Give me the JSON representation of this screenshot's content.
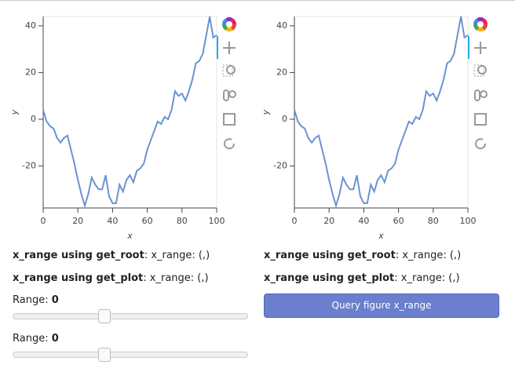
{
  "chart_data": [
    {
      "type": "line",
      "xlabel": "x",
      "ylabel": "y",
      "color": "#6a93d4",
      "x": [
        0,
        2,
        4,
        6,
        8,
        10,
        12,
        14,
        16,
        18,
        20,
        22,
        24,
        26,
        28,
        30,
        32,
        34,
        36,
        38,
        40,
        42,
        44,
        46,
        48,
        50,
        52,
        54,
        56,
        58,
        60,
        62,
        64,
        66,
        68,
        70,
        72,
        74,
        76,
        78,
        80,
        82,
        84,
        86,
        88,
        90,
        92,
        94,
        96,
        98,
        100
      ],
      "values": [
        4,
        -1,
        -3,
        -4,
        -8,
        -10,
        -8,
        -7,
        -13,
        -19,
        -26,
        -32,
        -37,
        -32,
        -25,
        -28,
        -30,
        -30,
        -24,
        -33,
        -36,
        -36,
        -28,
        -31,
        -26,
        -24,
        -27,
        -22,
        -21,
        -19,
        -13,
        -9,
        -5,
        -1,
        -2,
        1,
        0,
        4,
        12,
        10,
        11,
        8,
        12,
        17,
        24,
        25,
        28,
        36,
        44,
        35,
        36
      ],
      "xlim": [
        0,
        100
      ],
      "ylim": [
        -38,
        44
      ],
      "xticks": [
        0,
        20,
        40,
        60,
        80,
        100
      ],
      "yticks": [
        -20,
        0,
        20,
        40
      ]
    },
    {
      "type": "line",
      "xlabel": "x",
      "ylabel": "y",
      "color": "#6a93d4",
      "x": [
        0,
        2,
        4,
        6,
        8,
        10,
        12,
        14,
        16,
        18,
        20,
        22,
        24,
        26,
        28,
        30,
        32,
        34,
        36,
        38,
        40,
        42,
        44,
        46,
        48,
        50,
        52,
        54,
        56,
        58,
        60,
        62,
        64,
        66,
        68,
        70,
        72,
        74,
        76,
        78,
        80,
        82,
        84,
        86,
        88,
        90,
        92,
        94,
        96,
        98,
        100
      ],
      "values": [
        4,
        -1,
        -3,
        -4,
        -8,
        -10,
        -8,
        -7,
        -13,
        -19,
        -26,
        -32,
        -37,
        -32,
        -25,
        -28,
        -30,
        -30,
        -24,
        -33,
        -36,
        -36,
        -28,
        -31,
        -26,
        -24,
        -27,
        -22,
        -21,
        -19,
        -13,
        -9,
        -5,
        -1,
        -2,
        1,
        0,
        4,
        12,
        10,
        11,
        8,
        12,
        17,
        24,
        25,
        28,
        36,
        44,
        35,
        36
      ],
      "xlim": [
        0,
        100
      ],
      "ylim": [
        -38,
        44
      ],
      "xticks": [
        0,
        20,
        40,
        60,
        80,
        100
      ],
      "yticks": [
        -20,
        0,
        20,
        40
      ]
    }
  ],
  "left_panel": {
    "get_root": {
      "label": "x_range using get_root",
      "text": ": x_range: (,)"
    },
    "get_plot": {
      "label": "x_range using get_plot",
      "text": ": x_range: (,)"
    },
    "sliders": [
      {
        "label": "Range:",
        "value": 0
      },
      {
        "label": "Range:",
        "value": 0
      }
    ]
  },
  "right_panel": {
    "get_root": {
      "label": "x_range using get_root",
      "text": ": x_range: (,)"
    },
    "get_plot": {
      "label": "x_range using get_plot",
      "text": ": x_range: (,)"
    },
    "button": "Query figure x_range"
  }
}
